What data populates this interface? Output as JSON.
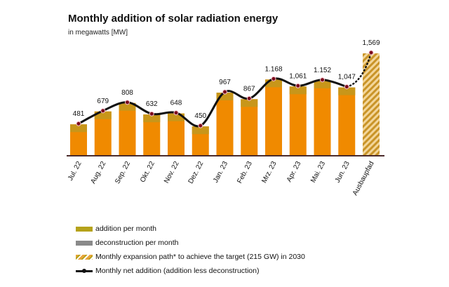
{
  "chart_data": {
    "type": "bar",
    "title": "Monthly addition of solar radiation energy",
    "subtitle": "in megawatts [MW]",
    "categories": [
      "Jul. 22",
      "Aug. 22",
      "Sep. 22",
      "Okt. 22",
      "Nov. 22",
      "Dez. 22",
      "Jan. 23",
      "Feb. 23",
      "Mrz. 23",
      "Apr. 23",
      "Mai. 23",
      "Jun. 23",
      "Ausbaupfad"
    ],
    "values": [
      481,
      679,
      808,
      632,
      648,
      450,
      967,
      867,
      1168,
      1061,
      1152,
      1047,
      1569
    ],
    "data_labels": [
      "481",
      "679",
      "808",
      "632",
      "648",
      "450",
      "967",
      "867",
      "1.168",
      "1,061",
      "1.152",
      "1,047",
      "1,569"
    ],
    "series": [
      {
        "name": "addition per month",
        "type": "bar",
        "color": "#b5a21a"
      },
      {
        "name": "deconstruction per month",
        "type": "bar",
        "color": "#8a8a8a"
      },
      {
        "name": "Monthly expansion path* to achieve the target (215 GW) in 2030",
        "type": "bar-hatched",
        "color": "#e8a43a"
      },
      {
        "name": "Monthly net addition (addition less deconstruction)",
        "type": "line",
        "color": "#111111"
      }
    ],
    "bar_color": "#f08a00",
    "ylim": [
      0,
      1600
    ],
    "grid": false,
    "legend_placement": "bottom-left"
  }
}
